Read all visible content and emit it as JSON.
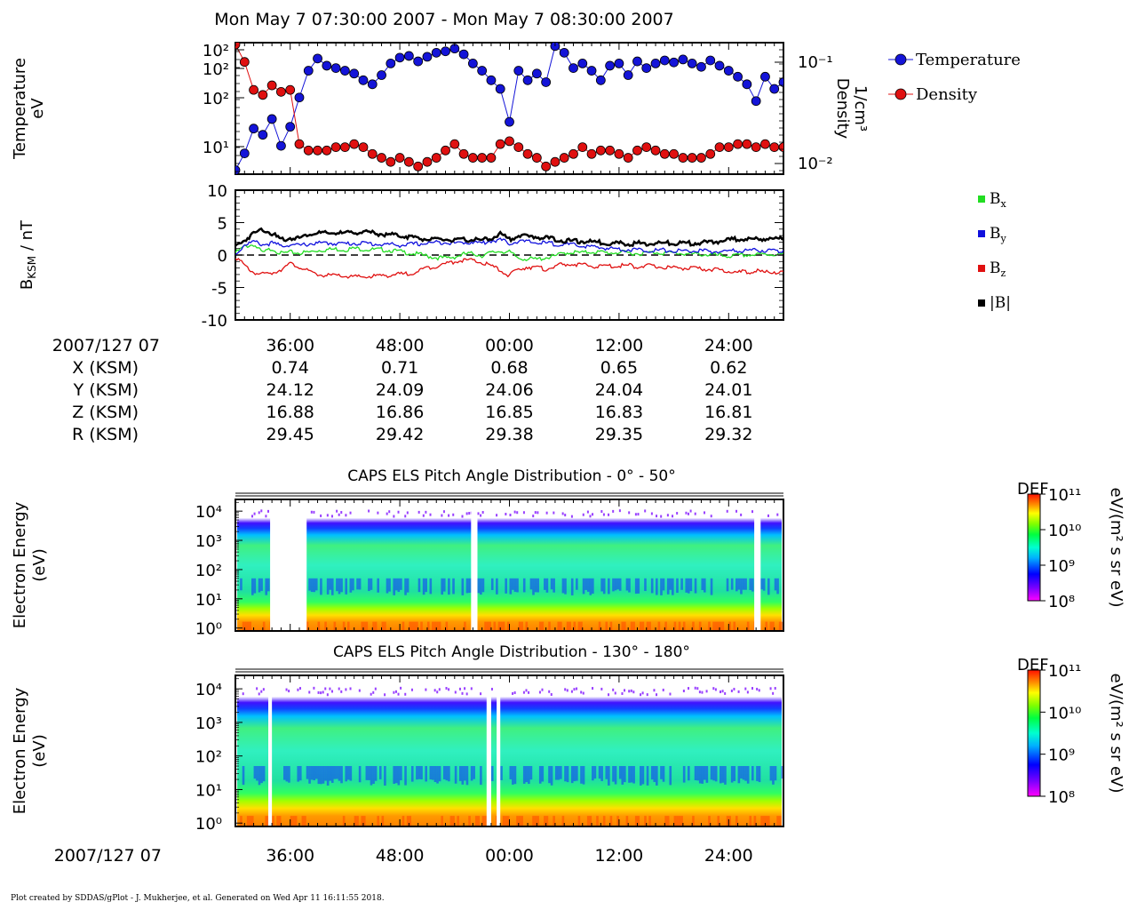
{
  "title": "Mon May 7 07:30:00 2007 - Mon May 7 08:30:00 2007",
  "footer": "Plot created by SDDAS/gPlot - J. Mukherjee, et al.  Generated on Wed Apr 11 16:11:55 2018.",
  "colors": {
    "temperature": "#1414d8",
    "density": "#e01010",
    "bx": "#22dd22",
    "by": "#1010dd",
    "bz": "#e01010",
    "btot": "#000000"
  },
  "ephemeris": {
    "date_label": "2007/127 07",
    "rows": [
      {
        "label": "X (KSM)",
        "values": [
          "0.74",
          "0.71",
          "0.68",
          "0.65",
          "0.62"
        ]
      },
      {
        "label": "Y (KSM)",
        "values": [
          "24.12",
          "24.09",
          "24.06",
          "24.04",
          "24.01"
        ]
      },
      {
        "label": "Z (KSM)",
        "values": [
          "16.88",
          "16.86",
          "16.85",
          "16.83",
          "16.81"
        ]
      },
      {
        "label": "R (KSM)",
        "values": [
          "29.45",
          "29.42",
          "29.38",
          "29.35",
          "29.32"
        ]
      }
    ]
  },
  "chart_data": [
    {
      "type": "scatter",
      "ylabel": "Temperature\neV",
      "y2label": "Density\n1/cm³",
      "y_scale": "log",
      "y_ticks": [
        "10²",
        "10²",
        "10²",
        "10¹"
      ],
      "y2_ticks": [
        "10⁻¹",
        "10⁻²"
      ],
      "legend": [
        {
          "name": "Temperature",
          "color": "#1414d8"
        },
        {
          "name": "Density",
          "color": "#e01010"
        }
      ],
      "x_minutes": [
        30,
        31,
        32,
        33,
        34,
        35,
        36,
        37,
        38,
        39,
        40,
        41,
        42,
        43,
        44,
        45,
        46,
        47,
        48,
        49,
        50,
        51,
        52,
        53,
        54,
        55,
        56,
        57,
        58,
        59,
        60,
        61,
        62,
        63,
        64,
        65,
        66,
        67,
        68,
        69,
        70,
        71,
        72,
        73,
        74,
        75,
        76,
        77,
        78,
        79,
        80,
        81,
        82,
        83,
        84,
        85,
        86,
        87,
        88,
        89,
        90
      ],
      "series": [
        {
          "name": "Temperature",
          "unit": "eV",
          "values": [
            4,
            7,
            16,
            13,
            22,
            9,
            17,
            45,
            110,
            165,
            130,
            120,
            110,
            100,
            80,
            70,
            95,
            140,
            170,
            180,
            150,
            175,
            200,
            210,
            230,
            190,
            140,
            110,
            80,
            60,
            20,
            110,
            80,
            100,
            75,
            250,
            200,
            120,
            140,
            110,
            80,
            130,
            140,
            95,
            150,
            120,
            140,
            155,
            145,
            160,
            140,
            125,
            155,
            130,
            110,
            90,
            70,
            40,
            90,
            60,
            75
          ]
        },
        {
          "name": "Density",
          "unit": "1/cm³",
          "values": [
            0.13,
            0.09,
            0.05,
            0.045,
            0.055,
            0.048,
            0.05,
            0.016,
            0.014,
            0.014,
            0.014,
            0.015,
            0.015,
            0.016,
            0.015,
            0.013,
            0.012,
            0.011,
            0.012,
            0.011,
            0.01,
            0.011,
            0.012,
            0.014,
            0.016,
            0.013,
            0.012,
            0.012,
            0.012,
            0.016,
            0.017,
            0.015,
            0.013,
            0.012,
            0.01,
            0.011,
            0.012,
            0.013,
            0.015,
            0.013,
            0.014,
            0.014,
            0.013,
            0.012,
            0.014,
            0.015,
            0.014,
            0.013,
            0.013,
            0.012,
            0.012,
            0.012,
            0.013,
            0.015,
            0.015,
            0.016,
            0.016,
            0.015,
            0.016,
            0.015,
            0.015
          ]
        }
      ]
    },
    {
      "type": "line",
      "ylabel": "BKSM / nT",
      "ylim": [
        -10,
        10
      ],
      "y_ticks": [
        "10",
        "5",
        "0",
        "-5",
        "-10"
      ],
      "legend": [
        {
          "name": "Bx",
          "color": "#22dd22"
        },
        {
          "name": "By",
          "color": "#1010dd"
        },
        {
          "name": "Bz",
          "color": "#e01010"
        },
        {
          "name": "|B|",
          "color": "#000000"
        }
      ],
      "x_minutes": [
        30,
        31,
        32,
        33,
        34,
        35,
        36,
        37,
        38,
        39,
        40,
        41,
        42,
        43,
        44,
        45,
        46,
        47,
        48,
        49,
        50,
        51,
        52,
        53,
        54,
        55,
        56,
        57,
        58,
        59,
        60,
        61,
        62,
        63,
        64,
        65,
        66,
        67,
        68,
        69,
        70,
        71,
        72,
        73,
        74,
        75,
        76,
        77,
        78,
        79,
        80,
        81,
        82,
        83,
        84,
        85,
        86,
        87,
        88,
        89,
        90
      ],
      "series": [
        {
          "name": "Bx",
          "values": [
            0.5,
            1.5,
            1.8,
            0.5,
            1.2,
            0.4,
            0.6,
            0.5,
            0.6,
            0.9,
            1.0,
            1.1,
            1.0,
            1.2,
            1.1,
            1.0,
            1.0,
            0.9,
            0.7,
            0.5,
            0.3,
            0.0,
            -0.2,
            -0.3,
            -0.1,
            0.3,
            0.4,
            0.1,
            0.5,
            0.8,
            0.6,
            -0.3,
            -0.4,
            -0.5,
            -0.2,
            0.0,
            0.5,
            0.6,
            0.5,
            0.7,
            0.6,
            0.5,
            0.6,
            0.5,
            0.4,
            0.5,
            0.6,
            0.5,
            0.5,
            0.4,
            0.3,
            0.3,
            0.2,
            0.1,
            0.0,
            0.1,
            0.2,
            0.2,
            0.3,
            0.3,
            0.3
          ]
        },
        {
          "name": "By",
          "values": [
            0.2,
            1.8,
            2.2,
            1.8,
            2.0,
            1.6,
            1.8,
            1.6,
            1.9,
            2.0,
            2.0,
            2.0,
            1.9,
            2.0,
            2.0,
            1.9,
            1.8,
            1.8,
            1.7,
            1.8,
            1.9,
            2.0,
            2.1,
            2.2,
            2.0,
            2.1,
            2.2,
            2.0,
            2.4,
            2.5,
            2.0,
            2.3,
            2.2,
            2.1,
            2.0,
            1.9,
            1.8,
            1.7,
            1.6,
            1.4,
            1.3,
            1.2,
            1.1,
            1.0,
            1.0,
            0.9,
            0.9,
            0.9,
            0.8,
            0.8,
            0.8,
            0.8,
            0.7,
            0.7,
            0.8,
            0.8,
            0.9,
            0.9,
            0.9,
            0.8,
            0.8
          ]
        },
        {
          "name": "Bz",
          "values": [
            0.0,
            -1.5,
            -2.5,
            -2.8,
            -2.6,
            -2.0,
            -1.2,
            -1.6,
            -2.4,
            -2.8,
            -3.0,
            -3.0,
            -3.1,
            -3.2,
            -3.2,
            -3.1,
            -3.0,
            -2.9,
            -2.8,
            -2.7,
            -2.3,
            -1.8,
            -1.5,
            -1.2,
            -0.8,
            -0.6,
            -0.7,
            -1.0,
            -1.5,
            -2.2,
            -3.0,
            -2.0,
            -1.6,
            -1.8,
            -2.0,
            -1.5,
            -1.3,
            -1.2,
            -1.4,
            -1.5,
            -1.6,
            -1.5,
            -1.5,
            -1.4,
            -1.6,
            -1.5,
            -1.6,
            -1.7,
            -1.8,
            -1.8,
            -1.9,
            -2.0,
            -2.0,
            -2.2,
            -2.3,
            -2.5,
            -2.4,
            -2.3,
            -2.5,
            -2.4,
            -2.5
          ]
        },
        {
          "name": "|B|",
          "values": [
            1.5,
            2.5,
            3.5,
            4.2,
            3.5,
            2.5,
            2.8,
            2.8,
            3.4,
            3.6,
            3.5,
            3.6,
            3.5,
            3.7,
            3.7,
            3.6,
            3.4,
            3.3,
            3.2,
            3.0,
            2.8,
            2.6,
            2.5,
            2.6,
            2.4,
            2.5,
            2.6,
            2.4,
            2.8,
            3.4,
            2.6,
            3.2,
            3.0,
            3.0,
            2.8,
            2.6,
            2.4,
            2.3,
            2.3,
            2.2,
            2.1,
            2.0,
            2.0,
            1.9,
            2.0,
            1.9,
            2.0,
            2.0,
            2.0,
            2.0,
            2.0,
            2.1,
            2.1,
            2.3,
            2.5,
            2.7,
            2.6,
            2.6,
            2.7,
            2.6,
            2.7
          ]
        }
      ]
    },
    {
      "type": "heatmap",
      "title": "CAPS ELS Pitch Angle Distribution - 0° - 50°",
      "ylabel": "Electron Energy\n(eV)",
      "y_scale": "log",
      "y_ticks": [
        "10⁴",
        "10³",
        "10²",
        "10¹",
        "10⁰"
      ],
      "colorbar": {
        "label": "DEF",
        "unit": "eV/(m² s sr eV)",
        "ticks": [
          "10¹¹",
          "10¹⁰",
          "10⁹",
          "10⁸"
        ]
      },
      "bands": [
        {
          "level": "red-orange",
          "energy_range_log10": [
            0.0,
            0.4
          ]
        },
        {
          "level": "yellow-green",
          "energy_range_log10": [
            0.4,
            1.0
          ]
        },
        {
          "level": "cyan-green",
          "energy_range_log10": [
            1.0,
            3.0
          ]
        },
        {
          "level": "blue-purple",
          "energy_range_log10": [
            3.0,
            3.4
          ]
        }
      ]
    },
    {
      "type": "heatmap",
      "title": "CAPS ELS Pitch Angle Distribution - 130° - 180°",
      "ylabel": "Electron Energy\n(eV)",
      "y_scale": "log",
      "y_ticks": [
        "10⁴",
        "10³",
        "10²",
        "10¹",
        "10⁰"
      ],
      "colorbar": {
        "label": "DEF",
        "unit": "eV/(m² s sr eV)",
        "ticks": [
          "10¹¹",
          "10¹⁰",
          "10⁹",
          "10⁸"
        ]
      },
      "bands": [
        {
          "level": "red-orange",
          "energy_range_log10": [
            0.0,
            0.4
          ]
        },
        {
          "level": "yellow-green",
          "energy_range_log10": [
            0.4,
            1.0
          ]
        },
        {
          "level": "cyan-green",
          "energy_range_log10": [
            1.0,
            3.0
          ]
        },
        {
          "level": "blue-purple",
          "energy_range_log10": [
            3.0,
            3.4
          ]
        }
      ]
    }
  ],
  "x_axis": {
    "date_label": "2007/127 07",
    "ticks": [
      "36:00",
      "48:00",
      "00:00",
      "12:00",
      "24:00"
    ],
    "tick_minutes": [
      36,
      48,
      60,
      72,
      84
    ],
    "range_minutes": [
      30,
      90
    ]
  }
}
